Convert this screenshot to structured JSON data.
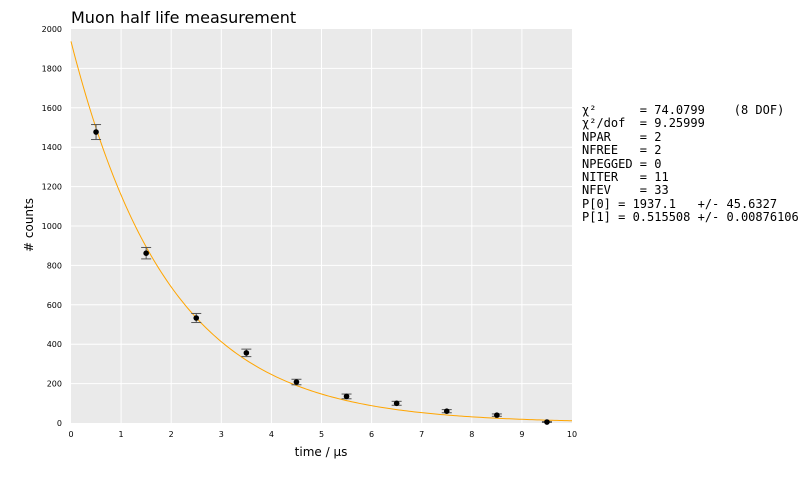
{
  "chart_data": {
    "type": "scatter",
    "title": "Muon half life measurement",
    "xlabel": "time / µs",
    "ylabel": "# counts",
    "xlim": [
      0,
      10
    ],
    "ylim": [
      0,
      2000
    ],
    "xticks": [
      "0",
      "1",
      "2",
      "3",
      "4",
      "5",
      "6",
      "7",
      "8",
      "9",
      "10"
    ],
    "yticks": [
      "0",
      "200",
      "400",
      "600",
      "800",
      "1000",
      "1200",
      "1400",
      "1600",
      "1800",
      "2000"
    ],
    "grid": true,
    "series": [
      {
        "x": [
          0.5,
          1.5,
          2.5,
          3.5,
          4.5,
          5.5,
          6.5,
          7.5,
          8.5,
          9.5
        ],
        "y": [
          1477,
          862,
          533,
          356,
          208,
          135,
          100,
          60,
          40,
          5
        ],
        "yerr": [
          38,
          29,
          23,
          19,
          14,
          12,
          10,
          8,
          6,
          2
        ]
      }
    ],
    "fit_curve": {
      "model": "exponential",
      "p0": 1937.1,
      "p1": 0.515508
    },
    "colors": {
      "plot_bg": "#eaeaea",
      "grid": "#ffffff",
      "fit": "#ffa500",
      "marker": "#000000",
      "errorbar": "#555555"
    }
  },
  "fit_results": [
    "χ²      = 74.0799    (8 DOF)",
    "χ²/dof  = 9.25999",
    "NPAR    = 2",
    "NFREE   = 2",
    "NPEGGED = 0",
    "NITER   = 11",
    "NFEV    = 33",
    "P[0] = 1937.1   +/- 45.6327",
    "P[1] = 0.515508 +/- 0.00876106"
  ]
}
